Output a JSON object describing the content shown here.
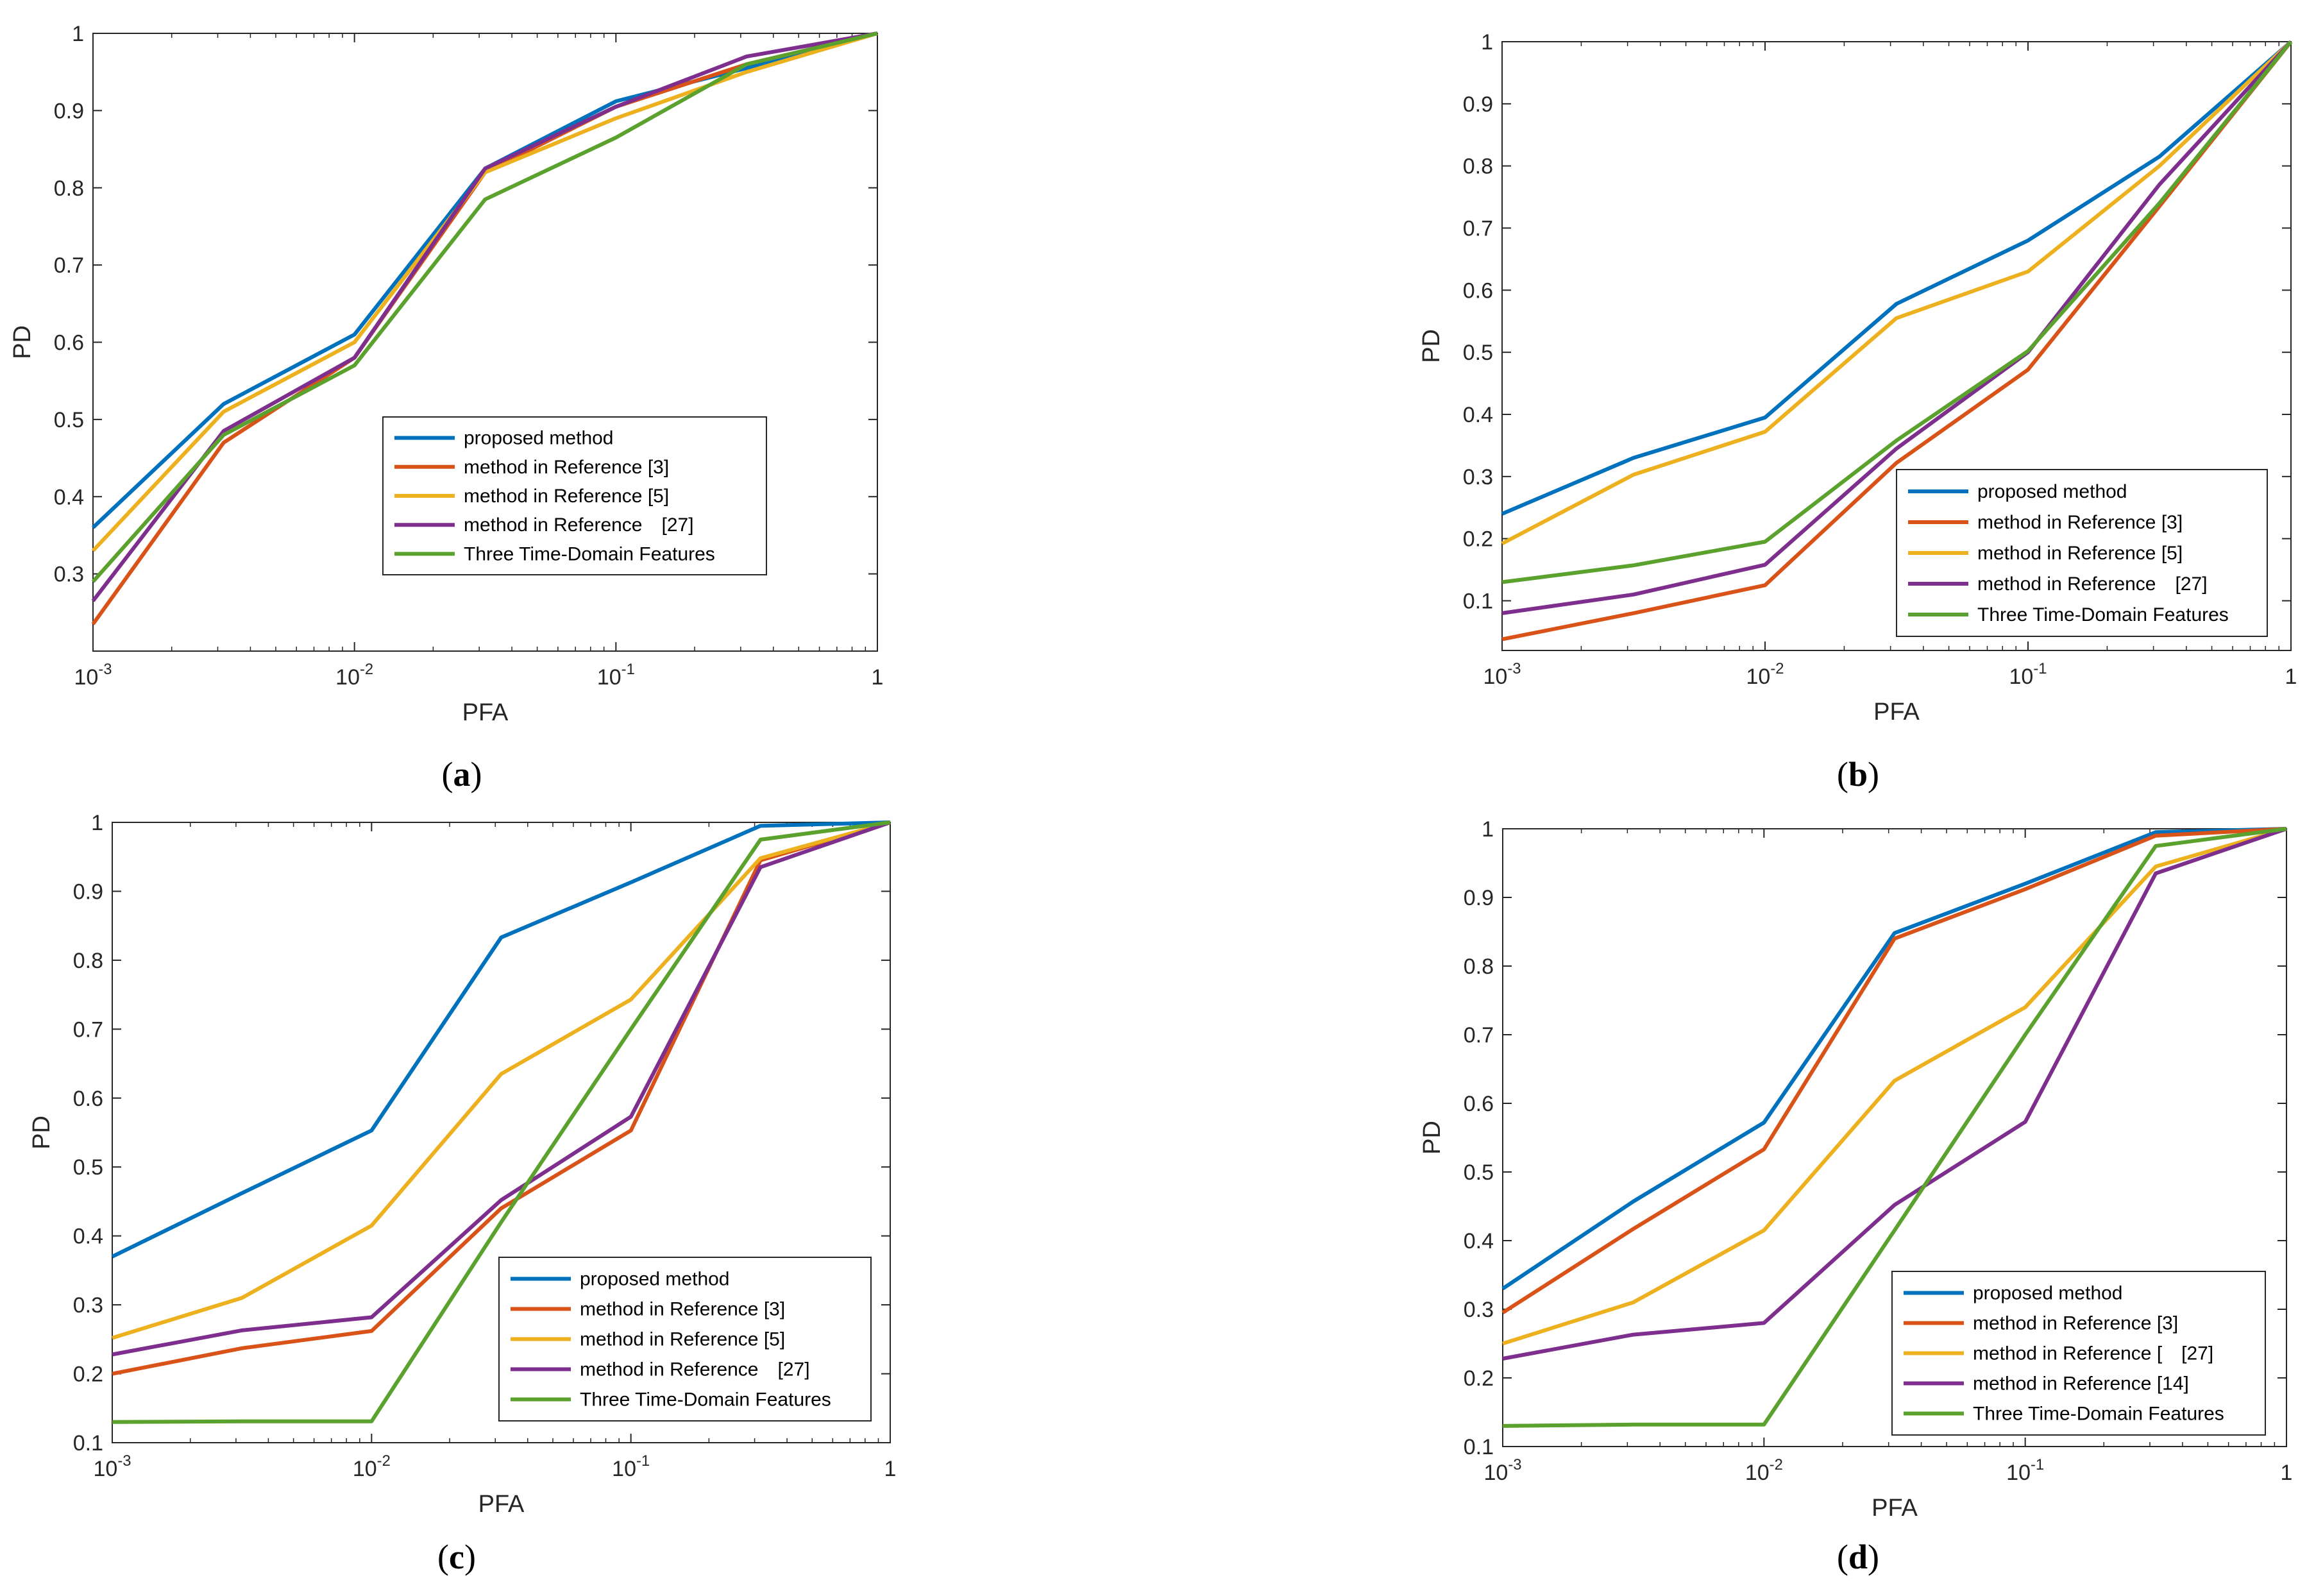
{
  "colors": {
    "blue": "#0072BD",
    "orange": "#D95319",
    "yellow": "#EDB120",
    "purple": "#7E2F8E",
    "green": "#5AA12D"
  },
  "chart_data": [
    {
      "panel": "a",
      "type": "line",
      "xscale": "log",
      "xlim": [
        0.001,
        1
      ],
      "ylim": [
        0.2,
        1
      ],
      "xlabel": "PFA",
      "ylabel": "PD",
      "x_ticks": [
        {
          "value": 0.001,
          "base": "10",
          "exp": "-3"
        },
        {
          "value": 0.01,
          "base": "10",
          "exp": "-2"
        },
        {
          "value": 0.1,
          "base": "10",
          "exp": "-1"
        },
        {
          "value": 1,
          "base": "1",
          "exp": ""
        }
      ],
      "y_ticks": [
        "0.3",
        "0.4",
        "0.5",
        "0.6",
        "0.7",
        "0.8",
        "0.9",
        "1"
      ],
      "x": [
        0.001,
        0.00316,
        0.01,
        0.0316,
        0.1,
        0.316,
        1
      ],
      "legend_location": "lower-right",
      "series": [
        {
          "name": "proposed method",
          "color": "blue",
          "values": [
            0.36,
            0.52,
            0.61,
            0.825,
            0.912,
            0.955,
            1.0
          ]
        },
        {
          "name": "method in Reference [3]",
          "color": "orange",
          "values": [
            0.235,
            0.47,
            0.58,
            0.82,
            0.905,
            0.96,
            1.0
          ]
        },
        {
          "name": "method in Reference [5]",
          "color": "yellow",
          "values": [
            0.33,
            0.51,
            0.6,
            0.82,
            0.89,
            0.95,
            1.0
          ]
        },
        {
          "name": "method in Reference　[27]",
          "color": "purple",
          "values": [
            0.265,
            0.485,
            0.58,
            0.825,
            0.905,
            0.97,
            1.0
          ]
        },
        {
          "name": "Three Time-Domain Features",
          "color": "green",
          "values": [
            0.29,
            0.48,
            0.57,
            0.785,
            0.865,
            0.96,
            1.0
          ]
        }
      ]
    },
    {
      "panel": "b",
      "type": "line",
      "xscale": "log",
      "xlim": [
        0.001,
        1
      ],
      "ylim": [
        0.02,
        1
      ],
      "xlabel": "PFA",
      "ylabel": "PD",
      "x_ticks": [
        {
          "value": 0.001,
          "base": "10",
          "exp": "-3"
        },
        {
          "value": 0.01,
          "base": "10",
          "exp": "-2"
        },
        {
          "value": 0.1,
          "base": "10",
          "exp": "-1"
        },
        {
          "value": 1,
          "base": "1",
          "exp": ""
        }
      ],
      "y_ticks": [
        "0.1",
        "0.2",
        "0.3",
        "0.4",
        "0.5",
        "0.6",
        "0.7",
        "0.8",
        "0.9",
        "1"
      ],
      "x": [
        0.001,
        0.00316,
        0.01,
        0.0316,
        0.1,
        0.316,
        1
      ],
      "legend_location": "lower-right",
      "series": [
        {
          "name": "proposed method",
          "color": "blue",
          "values": [
            0.24,
            0.33,
            0.395,
            0.578,
            0.68,
            0.815,
            1.0
          ]
        },
        {
          "name": "method in Reference [3]",
          "color": "orange",
          "values": [
            0.038,
            0.08,
            0.125,
            0.322,
            0.472,
            0.735,
            1.0
          ]
        },
        {
          "name": "method in Reference [5]",
          "color": "yellow",
          "values": [
            0.192,
            0.303,
            0.372,
            0.555,
            0.63,
            0.8,
            1.0
          ]
        },
        {
          "name": "method in Reference　[27]",
          "color": "purple",
          "values": [
            0.08,
            0.11,
            0.158,
            0.345,
            0.5,
            0.77,
            1.0
          ]
        },
        {
          "name": "Three Time-Domain Features",
          "color": "green",
          "values": [
            0.13,
            0.157,
            0.195,
            0.358,
            0.502,
            0.74,
            1.0
          ]
        }
      ]
    },
    {
      "panel": "c",
      "type": "line",
      "xscale": "log",
      "xlim": [
        0.001,
        1
      ],
      "ylim": [
        0.1,
        1
      ],
      "xlabel": "PFA",
      "ylabel": "PD",
      "x_ticks": [
        {
          "value": 0.001,
          "base": "10",
          "exp": "-3"
        },
        {
          "value": 0.01,
          "base": "10",
          "exp": "-2"
        },
        {
          "value": 0.1,
          "base": "10",
          "exp": "-1"
        },
        {
          "value": 1,
          "base": "1",
          "exp": ""
        }
      ],
      "y_ticks": [
        "0.1",
        "0.2",
        "0.3",
        "0.4",
        "0.5",
        "0.6",
        "0.7",
        "0.8",
        "0.9",
        "1"
      ],
      "x": [
        0.001,
        0.00316,
        0.01,
        0.0316,
        0.1,
        0.316,
        1
      ],
      "legend_location": "lower-right",
      "series": [
        {
          "name": "proposed method",
          "color": "blue",
          "values": [
            0.37,
            0.462,
            0.553,
            0.833,
            0.913,
            0.995,
            1.0
          ]
        },
        {
          "name": "method in Reference [3]",
          "color": "orange",
          "values": [
            0.2,
            0.237,
            0.262,
            0.44,
            0.553,
            0.945,
            1.0
          ]
        },
        {
          "name": "method in Reference [5]",
          "color": "yellow",
          "values": [
            0.252,
            0.31,
            0.415,
            0.635,
            0.743,
            0.948,
            1.0
          ]
        },
        {
          "name": "method in Reference　[27]",
          "color": "purple",
          "values": [
            0.228,
            0.263,
            0.282,
            0.452,
            0.573,
            0.935,
            1.0
          ]
        },
        {
          "name": "Three Time-Domain Features",
          "color": "green",
          "values": [
            0.13,
            0.131,
            0.131,
            0.42,
            0.7,
            0.975,
            1.0
          ]
        }
      ]
    },
    {
      "panel": "d",
      "type": "line",
      "xscale": "log",
      "xlim": [
        0.001,
        1
      ],
      "ylim": [
        0.1,
        1
      ],
      "xlabel": "PFA",
      "ylabel": "PD",
      "x_ticks": [
        {
          "value": 0.001,
          "base": "10",
          "exp": "-3"
        },
        {
          "value": 0.01,
          "base": "10",
          "exp": "-2"
        },
        {
          "value": 0.1,
          "base": "10",
          "exp": "-1"
        },
        {
          "value": 1,
          "base": "1",
          "exp": ""
        }
      ],
      "y_ticks": [
        "0.1",
        "0.2",
        "0.3",
        "0.4",
        "0.5",
        "0.6",
        "0.7",
        "0.8",
        "0.9",
        "1"
      ],
      "x": [
        0.001,
        0.00316,
        0.01,
        0.0316,
        0.1,
        0.316,
        1
      ],
      "legend_location": "lower-right",
      "series": [
        {
          "name": "proposed method",
          "color": "blue",
          "values": [
            0.33,
            0.457,
            0.572,
            0.848,
            0.92,
            0.995,
            1.0
          ]
        },
        {
          "name": "method in Reference [3]",
          "color": "orange",
          "values": [
            0.295,
            0.417,
            0.533,
            0.84,
            0.912,
            0.99,
            1.0
          ]
        },
        {
          "name": "method in Reference [　[27]",
          "color": "yellow",
          "values": [
            0.25,
            0.31,
            0.415,
            0.633,
            0.74,
            0.945,
            1.0
          ]
        },
        {
          "name": "method in Reference [14]",
          "color": "purple",
          "values": [
            0.228,
            0.263,
            0.28,
            0.452,
            0.573,
            0.935,
            1.0
          ]
        },
        {
          "name": "Three Time-Domain Features",
          "color": "green",
          "values": [
            0.13,
            0.132,
            0.132,
            0.415,
            0.7,
            0.975,
            1.0
          ]
        }
      ]
    }
  ],
  "panel_labels": [
    "(a)",
    "(b)",
    "(c)",
    "(d)"
  ]
}
